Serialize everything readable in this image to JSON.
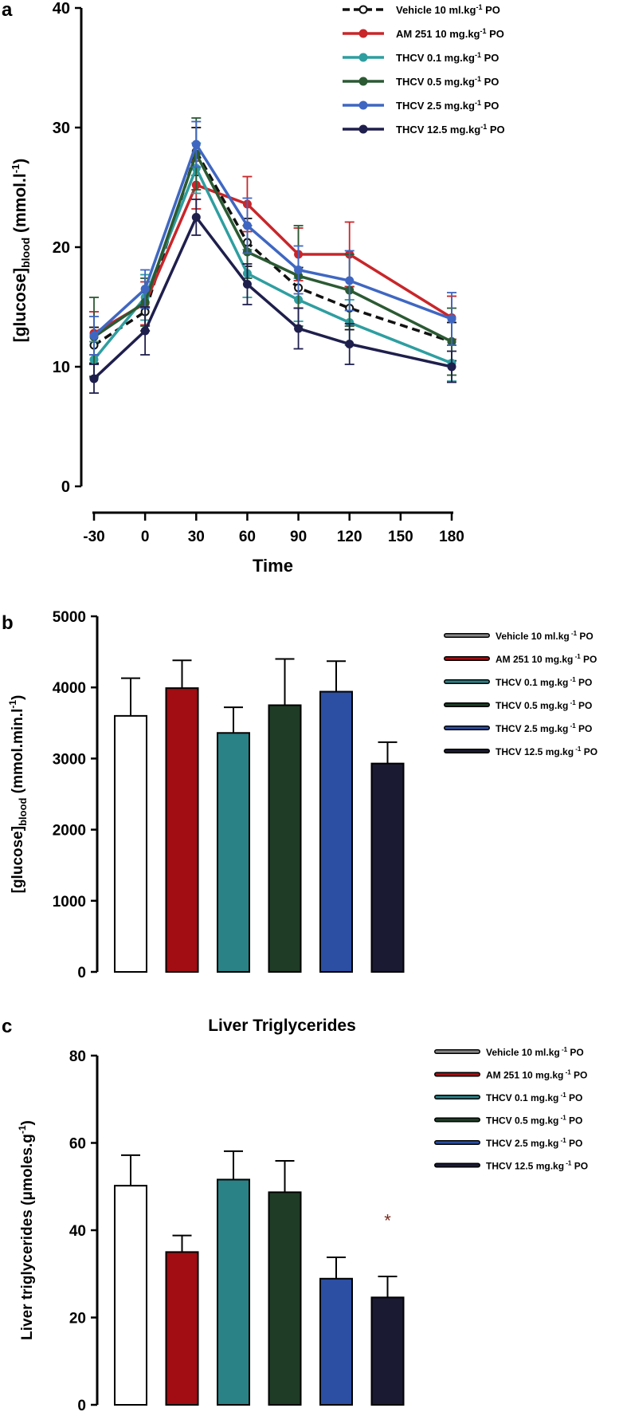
{
  "panels": {
    "a": {
      "letter": "a",
      "chart_data": {
        "type": "line",
        "title": "",
        "xlabel": "Time",
        "ylabel_main": "[glucose]",
        "ylabel_sub": "blood",
        "ylabel_unit": " (mmol.l",
        "ylabel_sup": "-1",
        "ylabel_close": ")",
        "x": [
          -30,
          0,
          30,
          60,
          90,
          120,
          150,
          180
        ],
        "x_ticks": [
          "-30",
          "0",
          "30",
          "60",
          "90",
          "120",
          "150",
          "180"
        ],
        "y_ticks": [
          "0",
          "10",
          "20",
          "30",
          "40"
        ],
        "ylim": [
          0,
          40
        ],
        "grid": false,
        "legend_position": "top-right",
        "series": [
          {
            "name": "Vehicle 10 ml.kg",
            "sup": "-1",
            "suffix": " PO",
            "color": "#111111",
            "dashed": true,
            "open": true,
            "x": [
              -30,
              0,
              30,
              60,
              90,
              120,
              180
            ],
            "values": [
              11.8,
              14.6,
              28.0,
              20.4,
              16.6,
              14.9,
              12.1
            ],
            "err": [
              1.5,
              1.6,
              2.0,
              2.0,
              1.7,
              1.8,
              1.6
            ]
          },
          {
            "name": "AM 251 10 mg.kg",
            "sup": "-1",
            "suffix": " PO",
            "color": "#c8262a",
            "dashed": false,
            "open": false,
            "x": [
              -30,
              0,
              30,
              60,
              90,
              120,
              180
            ],
            "values": [
              12.8,
              15.3,
              25.2,
              23.6,
              19.4,
              19.4,
              14.1
            ],
            "err": [
              1.8,
              1.8,
              2.0,
              2.3,
              2.2,
              2.7,
              1.8
            ]
          },
          {
            "name": "THCV 0.1 mg.kg",
            "sup": "-1",
            "suffix": " PO",
            "color": "#2e9ea0",
            "dashed": false,
            "open": false,
            "x": [
              -30,
              0,
              30,
              60,
              90,
              120,
              180
            ],
            "values": [
              10.6,
              15.8,
              26.6,
              17.8,
              15.6,
              13.7,
              10.3
            ],
            "err": [
              1.5,
              1.9,
              2.1,
              2.0,
              1.8,
              1.9,
              1.5
            ]
          },
          {
            "name": "THCV 0.5 mg.kg",
            "sup": "-1",
            "suffix": " PO",
            "color": "#2b5a33",
            "dashed": false,
            "open": false,
            "x": [
              -30,
              0,
              30,
              60,
              90,
              120,
              180
            ],
            "values": [
              12.5,
              15.4,
              27.8,
              19.6,
              17.6,
              16.4,
              12.1
            ],
            "err": [
              3.3,
              2.0,
              3.0,
              2.2,
              4.2,
              3.0,
              2.8
            ]
          },
          {
            "name": "THCV 2.5 mg.kg",
            "sup": "-1",
            "suffix": " PO",
            "color": "#3f67c2",
            "dashed": false,
            "open": false,
            "x": [
              -30,
              0,
              30,
              60,
              90,
              120,
              180
            ],
            "values": [
              12.6,
              16.5,
              28.6,
              21.8,
              18.1,
              17.2,
              14.0
            ],
            "err": [
              1.6,
              1.6,
              1.9,
              2.3,
              2.0,
              2.5,
              2.2
            ]
          },
          {
            "name": "THCV 12.5  mg.kg",
            "sup": "-1",
            "suffix": " PO",
            "color": "#1f1f4d",
            "dashed": false,
            "open": false,
            "x": [
              -30,
              0,
              30,
              60,
              90,
              120,
              180
            ],
            "values": [
              9.0,
              13.0,
              22.5,
              16.9,
              13.2,
              11.9,
              10.0
            ],
            "err": [
              1.2,
              2.0,
              1.5,
              1.7,
              1.7,
              1.7,
              1.3
            ]
          }
        ]
      }
    },
    "b": {
      "letter": "b",
      "chart_data": {
        "type": "bar",
        "title": "",
        "ylabel_main": "[glucose]",
        "ylabel_sub": "blood",
        "ylabel_unit": " (mmol.min.l",
        "ylabel_sup": "-1",
        "ylabel_close": ")",
        "y_ticks": [
          "0",
          "1000",
          "2000",
          "3000",
          "4000",
          "5000"
        ],
        "ylim": [
          0,
          5000
        ],
        "grid": false,
        "legend_position": "right",
        "categories": [
          "Vehicle 10 ml.kg",
          "AM 251 10 mg.kg",
          "THCV 0.1 mg.kg",
          "THCV 0.5 mg.kg",
          "THCV 2.5 mg.kg",
          "THCV 12.5  mg.kg"
        ],
        "legend_sup": " -1",
        "legend_suffix": " PO",
        "colors": [
          "#ffffff",
          "#a10d12",
          "#2a8186",
          "#1f3c26",
          "#2c4fa3",
          "#1a1a33"
        ],
        "values": [
          3600,
          3990,
          3360,
          3750,
          3940,
          2930
        ],
        "err": [
          530,
          390,
          360,
          650,
          430,
          300
        ]
      }
    },
    "c": {
      "letter": "c",
      "chart_data": {
        "type": "bar",
        "title": "Liver Triglycerides",
        "ylabel_main": "Liver triglycerides  (μmoles.g",
        "ylabel_sup": "-1",
        "ylabel_close": ")",
        "y_ticks": [
          "0",
          "20",
          "40",
          "60",
          "80"
        ],
        "ylim": [
          0,
          80
        ],
        "grid": false,
        "legend_position": "right",
        "categories": [
          "Vehicle 10 ml.kg",
          "AM 251 10 mg.kg",
          "THCV 0.1 mg.kg",
          "THCV 0.5 mg.kg",
          "THCV 2.5 mg.kg",
          "THCV 12.5  mg.kg"
        ],
        "legend_sup": " -1",
        "legend_suffix": " PO",
        "colors": [
          "#ffffff",
          "#a10d12",
          "#2a8186",
          "#1f3c26",
          "#2c4fa3",
          "#1a1a33"
        ],
        "values": [
          50.2,
          35.0,
          51.6,
          48.7,
          28.9,
          24.6
        ],
        "err": [
          7.0,
          3.8,
          6.5,
          7.2,
          4.9,
          4.8
        ],
        "annotation": "*",
        "annotation_index": 5,
        "annotation_value": 43
      }
    }
  }
}
